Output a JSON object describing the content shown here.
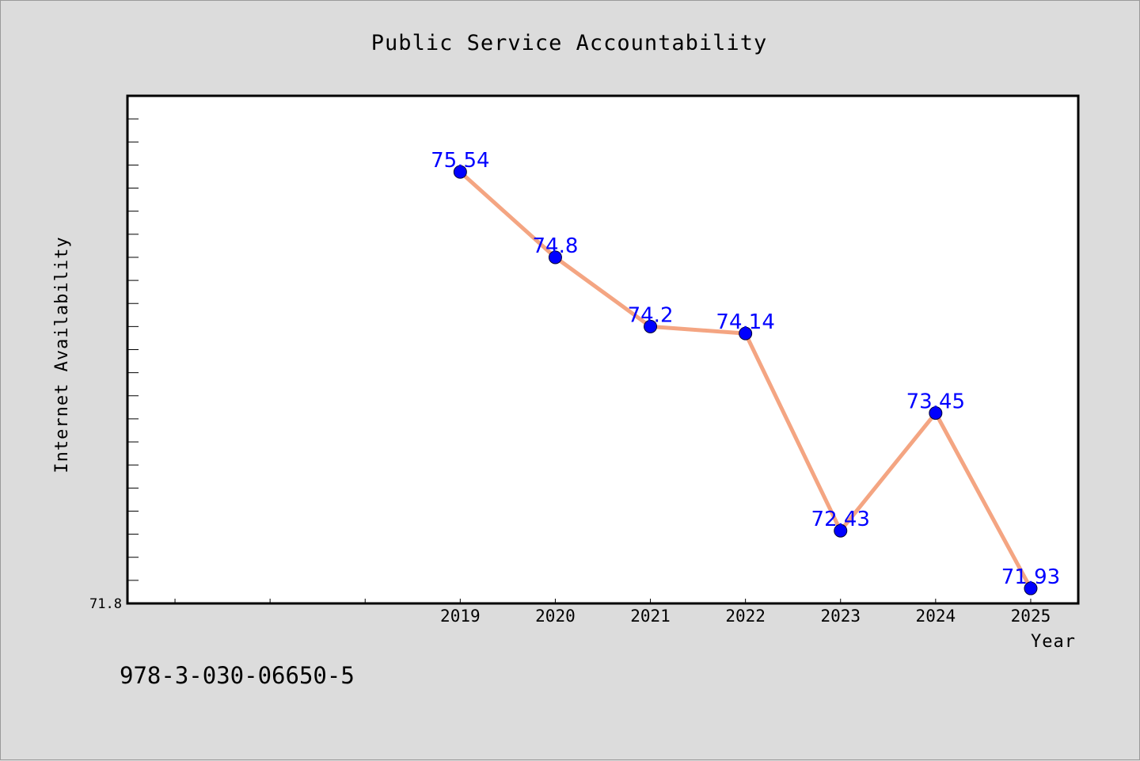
{
  "colors": {
    "background": "#dcdcdc",
    "plot_background": "#ffffff",
    "line": "#f4a582",
    "marker": "#0000ff",
    "data_label": "#0000ff"
  },
  "footer": {
    "isbn": "978-3-030-06650-5"
  },
  "chart_data": {
    "type": "line",
    "title": "Public Service Accountability",
    "xlabel": "Year",
    "ylabel": "Internet Availability",
    "categories": [
      "2019",
      "2020",
      "2021",
      "2022",
      "2023",
      "2024",
      "2025"
    ],
    "x_range": [
      2015.5,
      2025.5
    ],
    "ylim": [
      71.8,
      76.2
    ],
    "y_tick_labels": [
      "71.8"
    ],
    "series": [
      {
        "values": [
          75.54,
          74.8,
          74.2,
          74.14,
          72.43,
          73.45,
          71.93
        ]
      }
    ],
    "data_labels": [
      "75.54",
      "74.8",
      "74.2",
      "74.14",
      "72.43",
      "73.45",
      "71.93"
    ],
    "grid": false,
    "legend": "none"
  }
}
